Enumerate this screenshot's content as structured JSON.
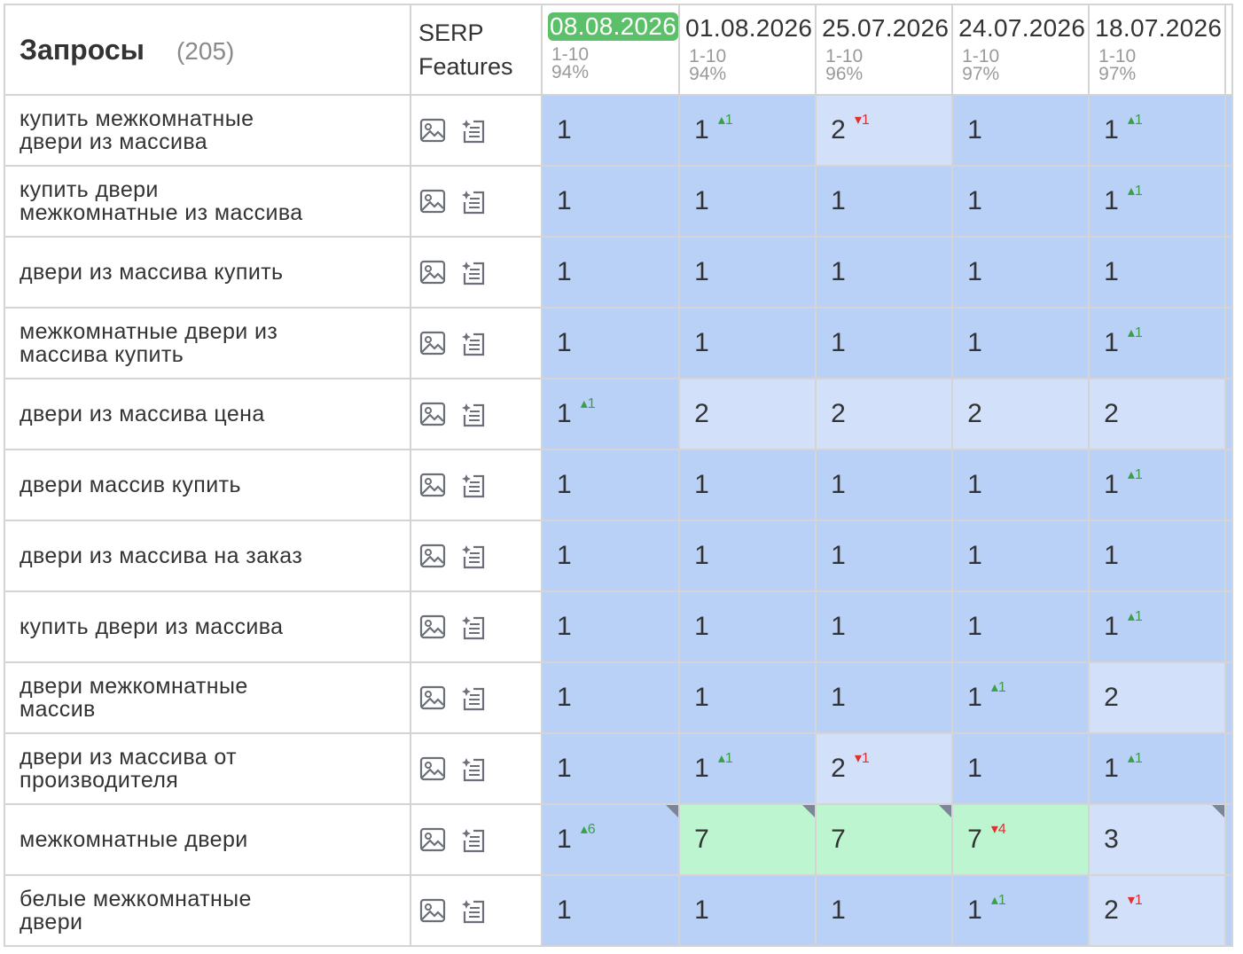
{
  "header": {
    "queries_title": "Запросы",
    "queries_count": "(205)",
    "serp_line1": "SERP",
    "serp_line2": "Features",
    "dates": [
      {
        "date": "08.08.2026",
        "range": "1-10",
        "pct": "94%",
        "current": true
      },
      {
        "date": "01.08.2026",
        "range": "1-10",
        "pct": "94%"
      },
      {
        "date": "25.07.2026",
        "range": "1-10",
        "pct": "96%"
      },
      {
        "date": "24.07.2026",
        "range": "1-10",
        "pct": "97%"
      },
      {
        "date": "18.07.2026",
        "range": "1-10",
        "pct": "97%"
      }
    ]
  },
  "icons": {
    "image": "image-icon",
    "list": "sparkle-list-icon"
  },
  "colors": {
    "top1": "#b9d0f7",
    "top3": "#d2e0fa",
    "top10": "#bdf5d0",
    "up": "#3aa048",
    "down": "#e03030",
    "current_date": "#5cc06a"
  },
  "rows": [
    {
      "query": [
        "купить межкомнатные",
        "двери из массива"
      ],
      "cells": [
        {
          "v": "1",
          "c": "c1"
        },
        {
          "v": "1",
          "c": "c1",
          "ch": "▴1",
          "dir": "up"
        },
        {
          "v": "2",
          "c": "c2",
          "ch": "▾1",
          "dir": "down"
        },
        {
          "v": "1",
          "c": "c1"
        },
        {
          "v": "1",
          "c": "c1",
          "ch": "▴1",
          "dir": "up"
        }
      ]
    },
    {
      "query": [
        "купить двери",
        "межкомнатные из массива"
      ],
      "cells": [
        {
          "v": "1",
          "c": "c1"
        },
        {
          "v": "1",
          "c": "c1"
        },
        {
          "v": "1",
          "c": "c1"
        },
        {
          "v": "1",
          "c": "c1"
        },
        {
          "v": "1",
          "c": "c1",
          "ch": "▴1",
          "dir": "up"
        }
      ]
    },
    {
      "query": [
        "двери из массива купить"
      ],
      "cells": [
        {
          "v": "1",
          "c": "c1"
        },
        {
          "v": "1",
          "c": "c1"
        },
        {
          "v": "1",
          "c": "c1"
        },
        {
          "v": "1",
          "c": "c1"
        },
        {
          "v": "1",
          "c": "c1"
        }
      ]
    },
    {
      "query": [
        "межкомнатные двери из",
        "массива купить"
      ],
      "cells": [
        {
          "v": "1",
          "c": "c1"
        },
        {
          "v": "1",
          "c": "c1"
        },
        {
          "v": "1",
          "c": "c1"
        },
        {
          "v": "1",
          "c": "c1"
        },
        {
          "v": "1",
          "c": "c1",
          "ch": "▴1",
          "dir": "up"
        }
      ]
    },
    {
      "query": [
        "двери из массива цена"
      ],
      "cells": [
        {
          "v": "1",
          "c": "c1",
          "ch": "▴1",
          "dir": "up"
        },
        {
          "v": "2",
          "c": "c2"
        },
        {
          "v": "2",
          "c": "c2"
        },
        {
          "v": "2",
          "c": "c2"
        },
        {
          "v": "2",
          "c": "c2"
        }
      ]
    },
    {
      "query": [
        "двери массив купить"
      ],
      "cells": [
        {
          "v": "1",
          "c": "c1"
        },
        {
          "v": "1",
          "c": "c1"
        },
        {
          "v": "1",
          "c": "c1"
        },
        {
          "v": "1",
          "c": "c1"
        },
        {
          "v": "1",
          "c": "c1",
          "ch": "▴1",
          "dir": "up"
        }
      ]
    },
    {
      "query": [
        "двери из массива на заказ"
      ],
      "cells": [
        {
          "v": "1",
          "c": "c1"
        },
        {
          "v": "1",
          "c": "c1"
        },
        {
          "v": "1",
          "c": "c1"
        },
        {
          "v": "1",
          "c": "c1"
        },
        {
          "v": "1",
          "c": "c1"
        }
      ]
    },
    {
      "query": [
        "купить двери из массива"
      ],
      "cells": [
        {
          "v": "1",
          "c": "c1"
        },
        {
          "v": "1",
          "c": "c1"
        },
        {
          "v": "1",
          "c": "c1"
        },
        {
          "v": "1",
          "c": "c1"
        },
        {
          "v": "1",
          "c": "c1",
          "ch": "▴1",
          "dir": "up"
        }
      ]
    },
    {
      "query": [
        "двери межкомнатные",
        "массив"
      ],
      "cells": [
        {
          "v": "1",
          "c": "c1"
        },
        {
          "v": "1",
          "c": "c1"
        },
        {
          "v": "1",
          "c": "c1"
        },
        {
          "v": "1",
          "c": "c1",
          "ch": "▴1",
          "dir": "up"
        },
        {
          "v": "2",
          "c": "c2"
        }
      ]
    },
    {
      "query": [
        "двери из массива от",
        "производителя"
      ],
      "cells": [
        {
          "v": "1",
          "c": "c1"
        },
        {
          "v": "1",
          "c": "c1",
          "ch": "▴1",
          "dir": "up"
        },
        {
          "v": "2",
          "c": "c2",
          "ch": "▾1",
          "dir": "down"
        },
        {
          "v": "1",
          "c": "c1"
        },
        {
          "v": "1",
          "c": "c1",
          "ch": "▴1",
          "dir": "up"
        }
      ]
    },
    {
      "query": [
        "межкомнатные двери"
      ],
      "cells": [
        {
          "v": "1",
          "c": "c1",
          "ch": "▴6",
          "dir": "up",
          "corner": true
        },
        {
          "v": "7",
          "c": "c3",
          "corner": true
        },
        {
          "v": "7",
          "c": "c3",
          "corner": true
        },
        {
          "v": "7",
          "c": "c3",
          "ch": "▾4",
          "dir": "down"
        },
        {
          "v": "3",
          "c": "c2",
          "corner": true
        }
      ]
    },
    {
      "query": [
        "белые межкомнатные",
        "двери"
      ],
      "cells": [
        {
          "v": "1",
          "c": "c1"
        },
        {
          "v": "1",
          "c": "c1"
        },
        {
          "v": "1",
          "c": "c1"
        },
        {
          "v": "1",
          "c": "c1",
          "ch": "▴1",
          "dir": "up"
        },
        {
          "v": "2",
          "c": "c2",
          "ch": "▾1",
          "dir": "down"
        }
      ]
    }
  ]
}
